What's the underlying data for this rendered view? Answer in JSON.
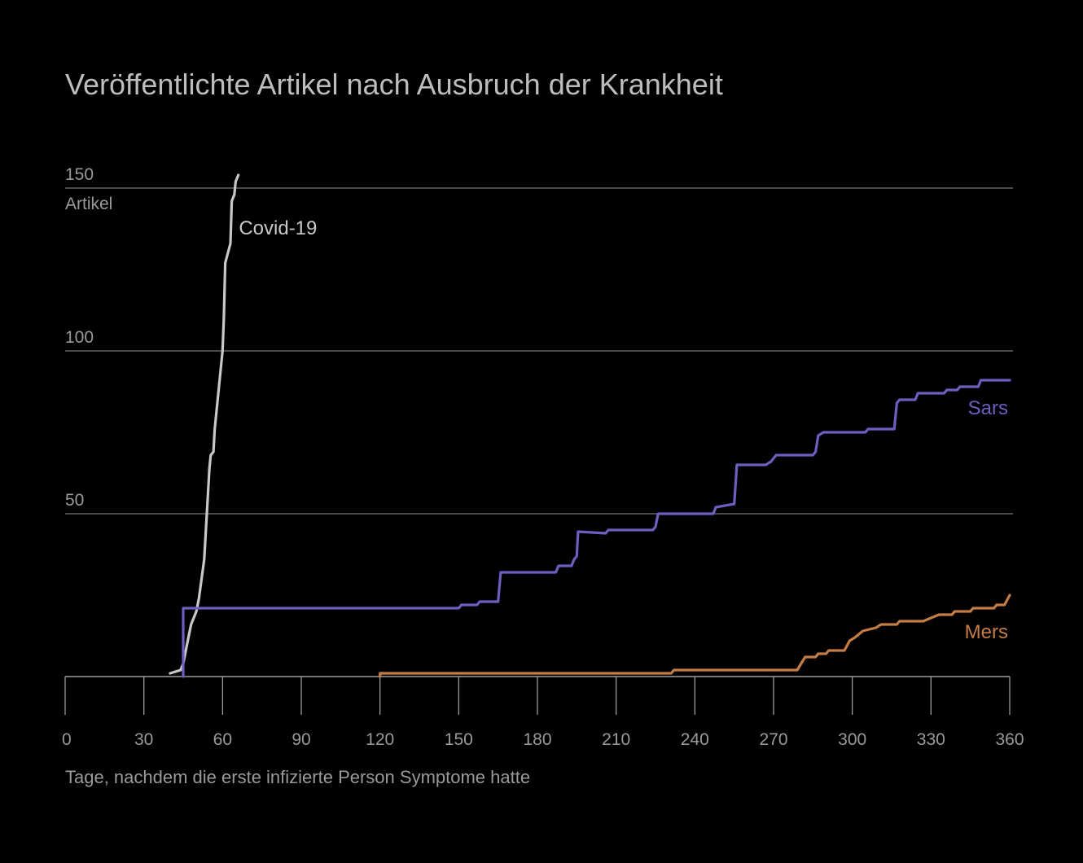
{
  "chart_data": {
    "type": "line",
    "title": "Veröffentlichte Artikel nach Ausbruch der Krankheit",
    "xlabel": "Tage, nachdem die erste infizierte Person Symptome hatte",
    "ylabel": "Artikel",
    "xlim": [
      0,
      360
    ],
    "ylim": [
      0,
      150
    ],
    "x_ticks": [
      0,
      30,
      60,
      90,
      120,
      150,
      180,
      210,
      240,
      270,
      300,
      330,
      360
    ],
    "y_ticks": [
      50,
      100,
      150
    ],
    "y_unit_label": "Artikel",
    "grid": true,
    "series": [
      {
        "name": "Covid-19",
        "color": "#c8c8c8",
        "points": [
          [
            40,
            1
          ],
          [
            44,
            2
          ],
          [
            45,
            4
          ],
          [
            46,
            8
          ],
          [
            47,
            12
          ],
          [
            48,
            16
          ],
          [
            50,
            20
          ],
          [
            51,
            24
          ],
          [
            53,
            36
          ],
          [
            54,
            50
          ],
          [
            55,
            64
          ],
          [
            55.5,
            68
          ],
          [
            56.5,
            69
          ],
          [
            57,
            76
          ],
          [
            58,
            84
          ],
          [
            59,
            92
          ],
          [
            60,
            100
          ],
          [
            60.5,
            110
          ],
          [
            61,
            127
          ],
          [
            62,
            130
          ],
          [
            63,
            133
          ],
          [
            63.5,
            146
          ],
          [
            64,
            147
          ],
          [
            64.5,
            148
          ],
          [
            65,
            152
          ],
          [
            66,
            154
          ]
        ]
      },
      {
        "name": "Sars",
        "color": "#6b5fbf",
        "points": [
          [
            45,
            0
          ],
          [
            45,
            21
          ],
          [
            150,
            21
          ],
          [
            151,
            22
          ],
          [
            157,
            22
          ],
          [
            158,
            23
          ],
          [
            165,
            23
          ],
          [
            166,
            32
          ],
          [
            187,
            32
          ],
          [
            188,
            34
          ],
          [
            193,
            34
          ],
          [
            194,
            36
          ],
          [
            195,
            37
          ],
          [
            195.5,
            44.5
          ],
          [
            206,
            44
          ],
          [
            207,
            45
          ],
          [
            224,
            45
          ],
          [
            225,
            46
          ],
          [
            226,
            50
          ],
          [
            247,
            50
          ],
          [
            248,
            52
          ],
          [
            255,
            53
          ],
          [
            256,
            65
          ],
          [
            267,
            65
          ],
          [
            269,
            66
          ],
          [
            271,
            68
          ],
          [
            285,
            68
          ],
          [
            286,
            69
          ],
          [
            287,
            74
          ],
          [
            289,
            75
          ],
          [
            305,
            75
          ],
          [
            306,
            76
          ],
          [
            316,
            76
          ],
          [
            317,
            84
          ],
          [
            318,
            85
          ],
          [
            324,
            85
          ],
          [
            325,
            87
          ],
          [
            335,
            87
          ],
          [
            336,
            88
          ],
          [
            340,
            88
          ],
          [
            341,
            89
          ],
          [
            348,
            89
          ],
          [
            349,
            91
          ],
          [
            360,
            91
          ]
        ]
      },
      {
        "name": "Mers",
        "color": "#c47d44",
        "points": [
          [
            120,
            0
          ],
          [
            120,
            1
          ],
          [
            231,
            1
          ],
          [
            232,
            2
          ],
          [
            279,
            2
          ],
          [
            282,
            6
          ],
          [
            286,
            6
          ],
          [
            287,
            7
          ],
          [
            290,
            7
          ],
          [
            291,
            8
          ],
          [
            297,
            8
          ],
          [
            299,
            11
          ],
          [
            301,
            12
          ],
          [
            304,
            14
          ],
          [
            309,
            15
          ],
          [
            311,
            16
          ],
          [
            317,
            16
          ],
          [
            318,
            17
          ],
          [
            327,
            17
          ],
          [
            330,
            18
          ],
          [
            333,
            19
          ],
          [
            338,
            19
          ],
          [
            339,
            20
          ],
          [
            345,
            20
          ],
          [
            346,
            21
          ],
          [
            354,
            21
          ],
          [
            355,
            22
          ],
          [
            358,
            22
          ],
          [
            360,
            25
          ]
        ]
      }
    ]
  }
}
